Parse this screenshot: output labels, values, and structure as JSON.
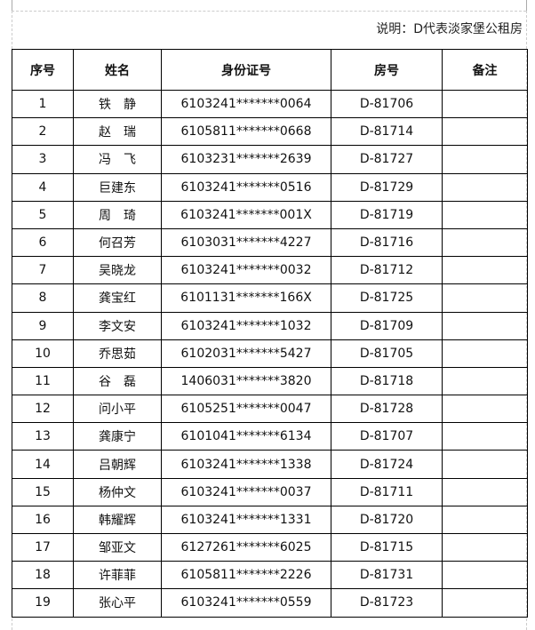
{
  "note": "说明：D代表淡家堡公租房",
  "table": {
    "headers": [
      "序号",
      "姓名",
      "身份证号",
      "房号",
      "备注"
    ],
    "rows": [
      [
        "1",
        "铁　静",
        "6103241*******0064",
        "D-81706",
        ""
      ],
      [
        "2",
        "赵　瑞",
        "6105811*******0668",
        "D-81714",
        ""
      ],
      [
        "3",
        "冯　飞",
        "6103231*******2639",
        "D-81727",
        ""
      ],
      [
        "4",
        "巨建东",
        "6103241*******0516",
        "D-81729",
        ""
      ],
      [
        "5",
        "周　琦",
        "6103241*******001X",
        "D-81719",
        ""
      ],
      [
        "6",
        "何召芳",
        "6103031*******4227",
        "D-81716",
        ""
      ],
      [
        "7",
        "吴晓龙",
        "6103241*******0032",
        "D-81712",
        ""
      ],
      [
        "8",
        "龚宝红",
        "6101131*******166X",
        "D-81725",
        ""
      ],
      [
        "9",
        "李文安",
        "6103241*******1032",
        "D-81709",
        ""
      ],
      [
        "10",
        "乔思茹",
        "6102031*******5427",
        "D-81705",
        ""
      ],
      [
        "11",
        "谷　磊",
        "1406031*******3820",
        "D-81718",
        ""
      ],
      [
        "12",
        "问小平",
        "6105251*******0047",
        "D-81728",
        ""
      ],
      [
        "13",
        "龚康宁",
        "6101041*******6134",
        "D-81707",
        ""
      ],
      [
        "14",
        "吕朝辉",
        "6103241*******1338",
        "D-81724",
        ""
      ],
      [
        "15",
        "杨仲文",
        "6103241*******0037",
        "D-81711",
        ""
      ],
      [
        "16",
        "韩耀辉",
        "6103241*******1331",
        "D-81720",
        ""
      ],
      [
        "17",
        "邹亚文",
        "6127261*******6025",
        "D-81715",
        ""
      ],
      [
        "18",
        "许菲菲",
        "6105811*******2226",
        "D-81731",
        ""
      ],
      [
        "19",
        "张心平",
        "6103241*******0559",
        "D-81723",
        ""
      ]
    ]
  }
}
